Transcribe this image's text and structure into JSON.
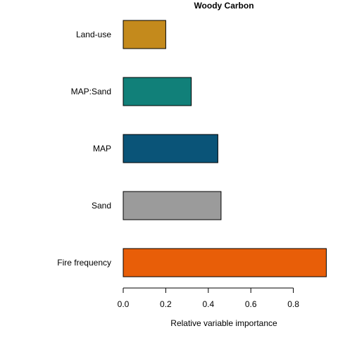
{
  "chart_data": {
    "type": "bar",
    "orientation": "horizontal",
    "title": "Woody Carbon",
    "xlabel": "Relative variable importance",
    "ylabel": "",
    "categories": [
      "Land-use",
      "MAP:Sand",
      "MAP",
      "Sand",
      "Fire frequency"
    ],
    "values": [
      0.2,
      0.32,
      0.445,
      0.46,
      0.955
    ],
    "colors": [
      "#c48a1c",
      "#118079",
      "#0a5478",
      "#9b9b9b",
      "#e85e08"
    ],
    "xticks": [
      "0.0",
      "0.2",
      "0.4",
      "0.6",
      "0.8"
    ],
    "xlim": [
      0,
      0.955
    ],
    "grid": false,
    "legend": "none"
  }
}
